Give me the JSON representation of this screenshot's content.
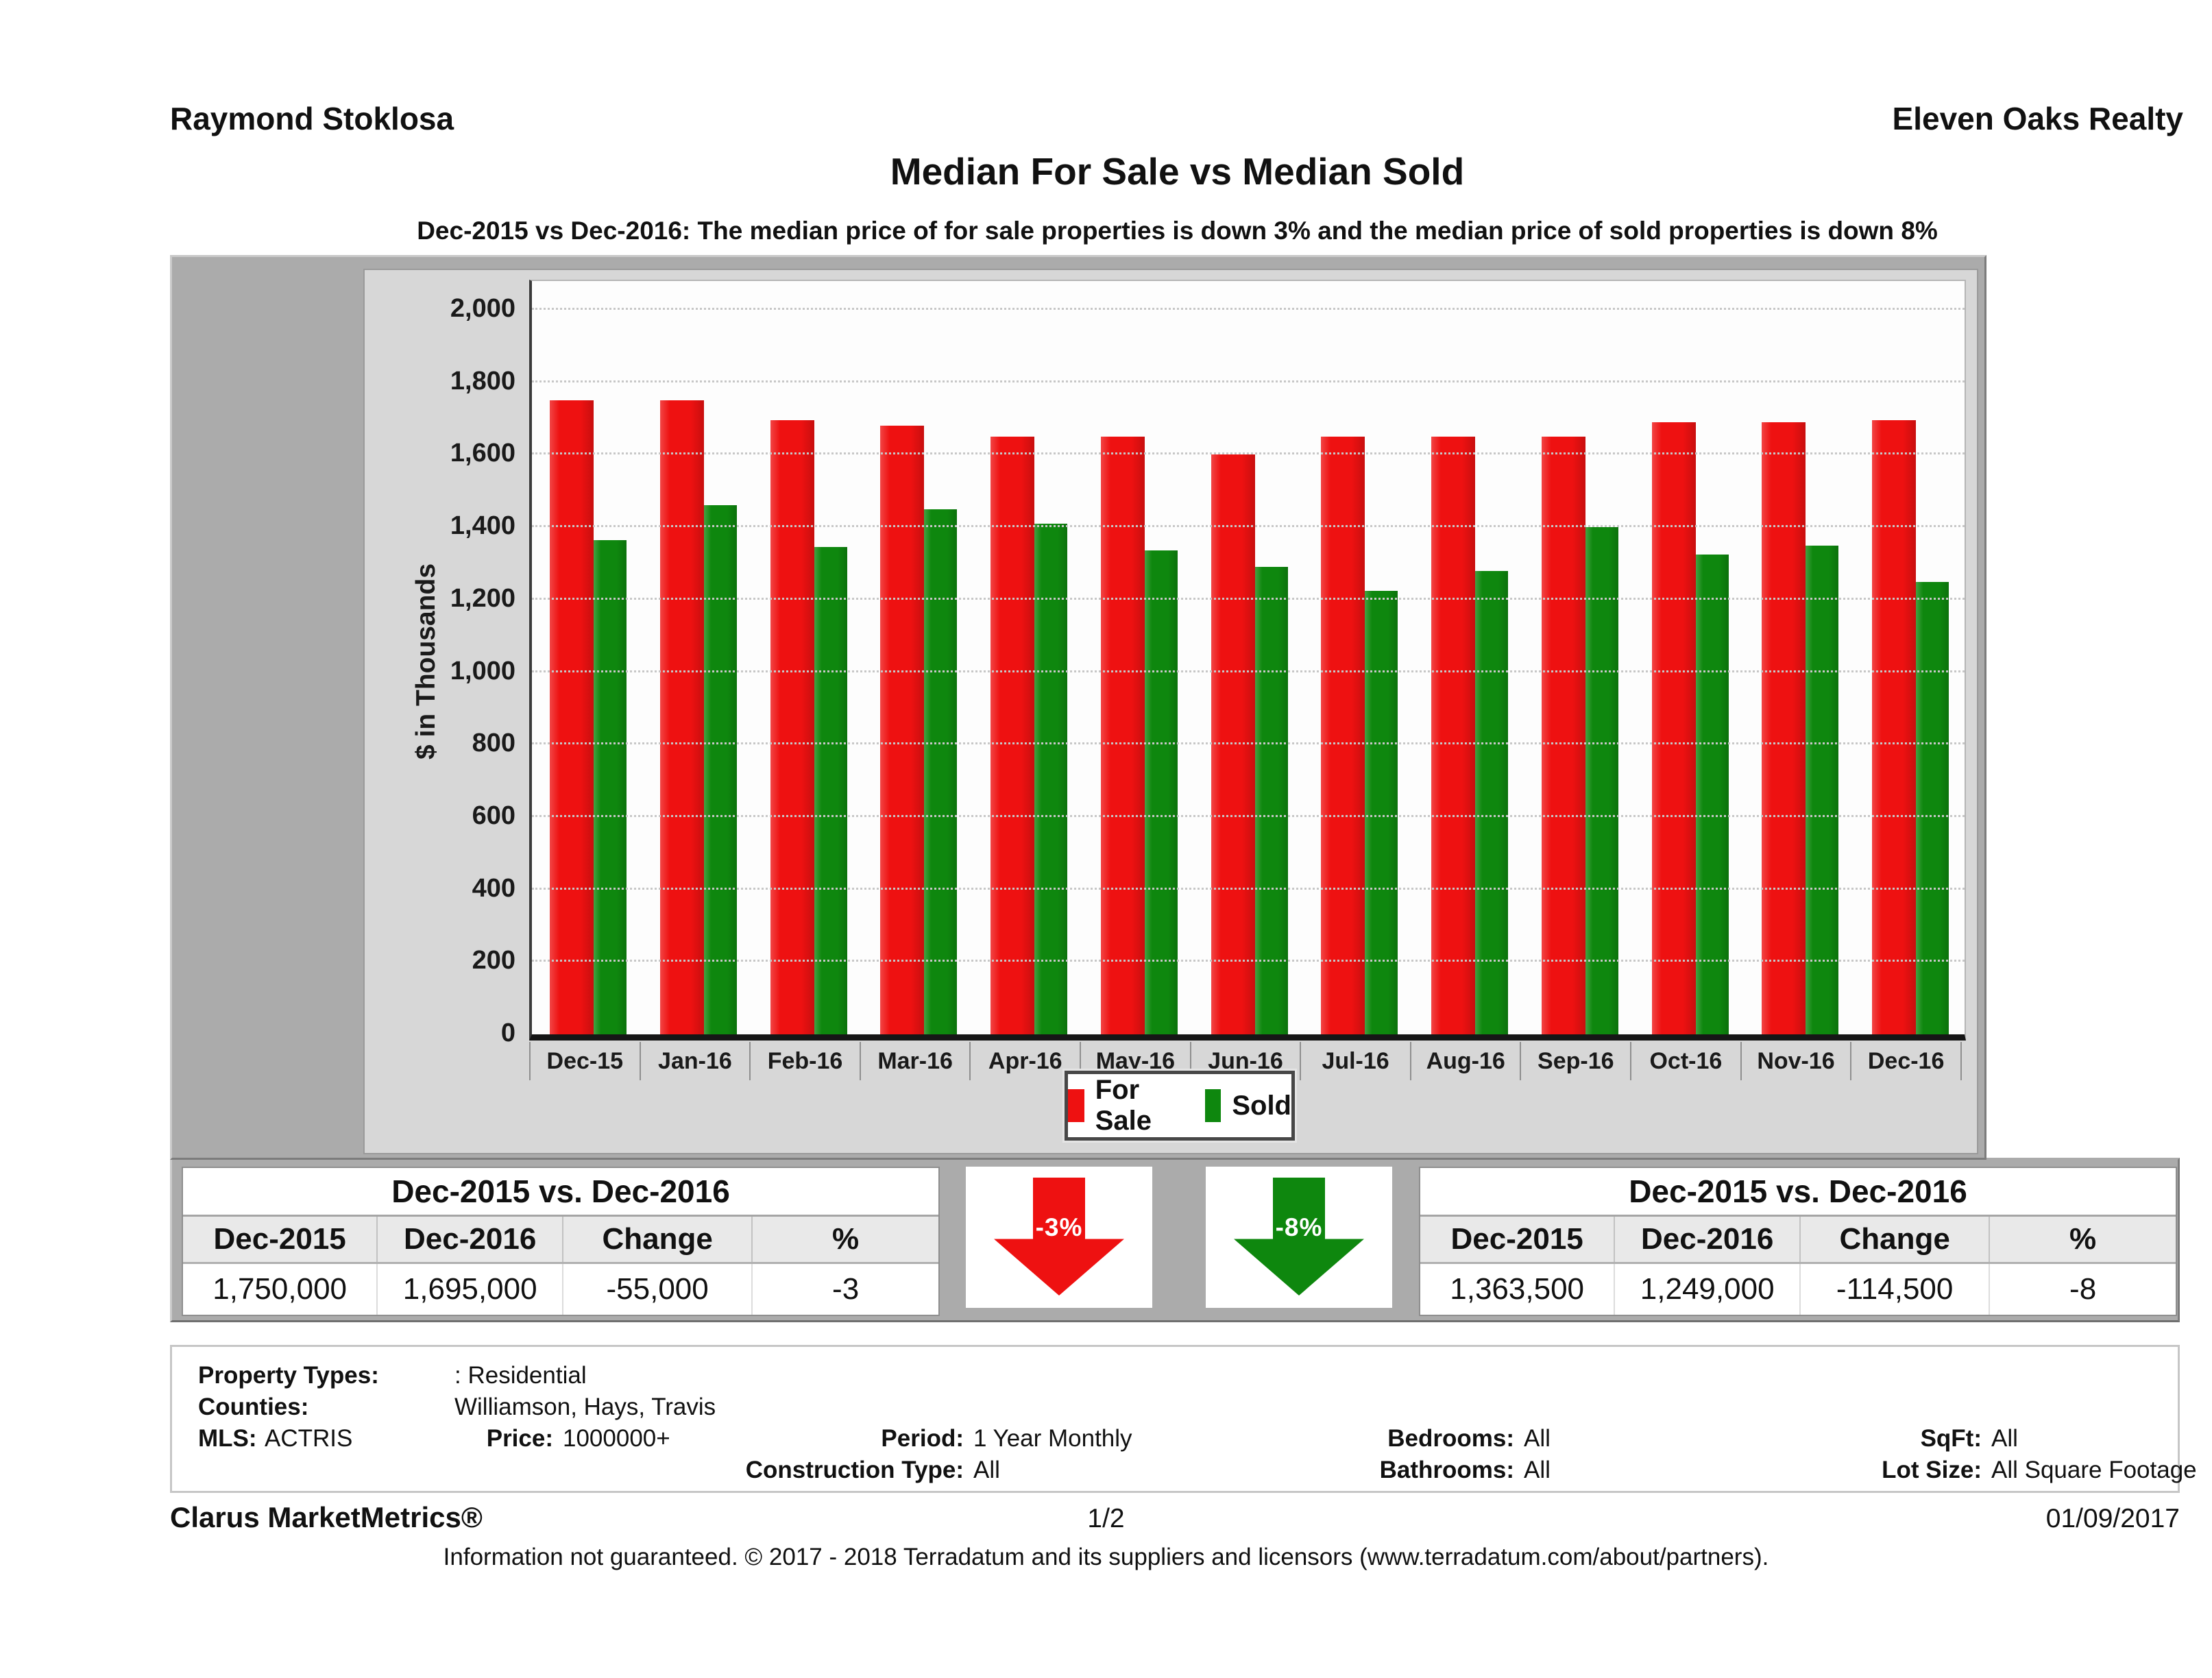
{
  "header": {
    "agent": "Raymond Stoklosa",
    "company": "Eleven Oaks Realty"
  },
  "title": "Median For Sale vs Median Sold",
  "subtitle": "Dec-2015 vs Dec-2016: The median price of for sale properties is down 3% and the median price of sold properties is down 8%",
  "chart_data": {
    "type": "bar",
    "title": "Median For Sale vs Median Sold",
    "categories": [
      "Dec-15",
      "Jan-16",
      "Feb-16",
      "Mar-16",
      "Apr-16",
      "May-16",
      "Jun-16",
      "Jul-16",
      "Aug-16",
      "Sep-16",
      "Oct-16",
      "Nov-16",
      "Dec-16"
    ],
    "series": [
      {
        "name": "For Sale",
        "color": "#ee1111",
        "values": [
          1750,
          1750,
          1695,
          1680,
          1650,
          1650,
          1600,
          1650,
          1650,
          1650,
          1690,
          1690,
          1695
        ]
      },
      {
        "name": "Sold",
        "color": "#0e870e",
        "values": [
          1363.5,
          1460,
          1345,
          1450,
          1410,
          1335,
          1290,
          1225,
          1280,
          1400,
          1325,
          1350,
          1249
        ]
      }
    ],
    "xlabel": "",
    "ylabel": "$ in Thousands",
    "ylim": [
      0,
      2000
    ],
    "ytick_step": 200,
    "grid": "horizontal-dotted",
    "legend_position": "bottom-center",
    "units": "thousands of dollars"
  },
  "comparison_left": {
    "title": "Dec-2015 vs. Dec-2016",
    "columns": [
      "Dec-2015",
      "Dec-2016",
      "Change",
      "%"
    ],
    "values": [
      "1,750,000",
      "1,695,000",
      "-55,000",
      "-3"
    ]
  },
  "comparison_right": {
    "title": "Dec-2015 vs. Dec-2016",
    "columns": [
      "Dec-2015",
      "Dec-2016",
      "Change",
      "%"
    ],
    "values": [
      "1,363,500",
      "1,249,000",
      "-114,500",
      "-8"
    ]
  },
  "arrows": [
    {
      "label": "-3%",
      "color": "#ee1111",
      "direction": "down"
    },
    {
      "label": "-8%",
      "color": "#0e870e",
      "direction": "down"
    }
  ],
  "filters": {
    "property_types_label": "Property Types:",
    "property_types_value": ": Residential",
    "counties_label": "Counties:",
    "counties_value": "Williamson, Hays, Travis",
    "mls_label": "MLS:",
    "mls_value": "ACTRIS",
    "price_label": "Price:",
    "price_value": "1000000+",
    "period_label": "Period:",
    "period_value": "1 Year Monthly",
    "construction_label": "Construction Type:",
    "construction_value": "All",
    "bedrooms_label": "Bedrooms:",
    "bedrooms_value": "All",
    "bathrooms_label": "Bathrooms:",
    "bathrooms_value": "All",
    "sqft_label": "SqFt:",
    "sqft_value": "All",
    "lotsize_label": "Lot Size:",
    "lotsize_value": "All Square Footage"
  },
  "footer": {
    "brand": "Clarus MarketMetrics®",
    "page": "1/2",
    "date": "01/09/2017",
    "disclaimer": "Information not guaranteed. © 2017 - 2018 Terradatum and its suppliers and licensors (www.terradatum.com/about/partners)."
  }
}
